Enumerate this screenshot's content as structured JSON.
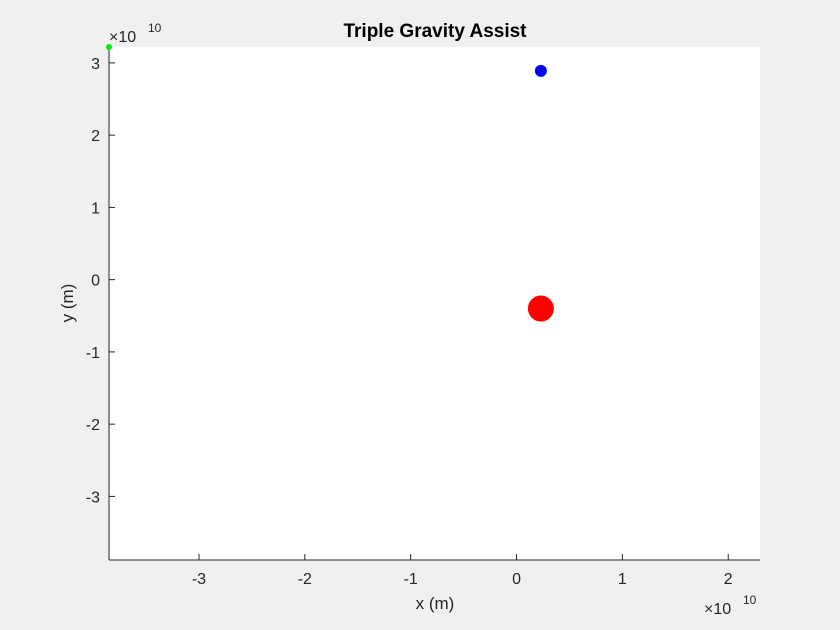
{
  "chart_data": {
    "type": "scatter",
    "title": "Triple Gravity Assist",
    "xlabel": "x (m)",
    "ylabel": "y (m)",
    "x_exponent_label": "×10",
    "x_exponent_power": "10",
    "y_exponent_label": "×10",
    "y_exponent_power": "10",
    "xlim": [
      -3.85,
      2.3
    ],
    "ylim": [
      -3.88,
      3.22
    ],
    "x_ticks": [
      -3,
      -2,
      -1,
      0,
      1,
      2
    ],
    "x_tick_labels": [
      "-3",
      "-2",
      "-1",
      "0",
      "1",
      "2"
    ],
    "y_ticks": [
      -3,
      -2,
      -1,
      0,
      1,
      2,
      3
    ],
    "y_tick_labels": [
      "-3",
      "-2",
      "-1",
      "0",
      "1",
      "2",
      "3"
    ],
    "grid": false,
    "points": [
      {
        "x": 0.23,
        "y": 2.89,
        "color": "#0000ff",
        "size": 6
      },
      {
        "x": 0.23,
        "y": -0.4,
        "color": "#ff0000",
        "size": 13
      },
      {
        "x": -3.85,
        "y": 3.22,
        "color": "#00ee00",
        "size": 3
      }
    ]
  }
}
